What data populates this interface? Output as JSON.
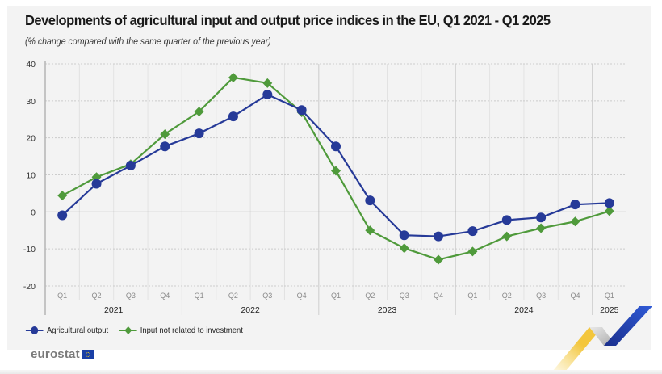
{
  "colors": {
    "output": "#263a98",
    "input": "#4f9a3b",
    "grid": "#d6d6d6",
    "zero_line": "#9a9a9a",
    "tick_text": "#333333",
    "quarter_text": "#8a8a8a"
  },
  "footer": {
    "logo_text": "eurostat"
  },
  "chart_data": {
    "type": "line",
    "title": "Developments of agricultural input and output price indices in the EU, Q1 2021 - Q1 2025",
    "subtitle": "(% change compared with the same quarter of the previous year)",
    "xlabel": "",
    "ylabel": "",
    "ylim": [
      -20,
      40
    ],
    "yticks": [
      40,
      30,
      20,
      10,
      0,
      -10,
      -20
    ],
    "ytick_labels": [
      "40",
      "30",
      "20",
      "10",
      "0",
      "-10",
      "-20"
    ],
    "grid": true,
    "legend_position": "bottom-left",
    "x": [
      "Q1",
      "Q2",
      "Q3",
      "Q4",
      "Q1",
      "Q2",
      "Q3",
      "Q4",
      "Q1",
      "Q2",
      "Q3",
      "Q4",
      "Q1",
      "Q2",
      "Q3",
      "Q4",
      "Q1"
    ],
    "year_groups": [
      {
        "label": "2021",
        "count": 4
      },
      {
        "label": "2022",
        "count": 4
      },
      {
        "label": "2023",
        "count": 4
      },
      {
        "label": "2024",
        "count": 4
      },
      {
        "label": "2025",
        "count": 1
      }
    ],
    "series": [
      {
        "name": "Agricultural output",
        "marker": "circle",
        "values": [
          -0.9,
          7.6,
          12.5,
          17.7,
          21.2,
          25.8,
          31.7,
          27.5,
          17.7,
          3.1,
          -6.3,
          -6.6,
          -5.2,
          -2.2,
          -1.5,
          2.0,
          2.4
        ]
      },
      {
        "name": "Input not related to investment",
        "marker": "diamond",
        "values": [
          4.4,
          9.4,
          12.9,
          21.0,
          27.1,
          36.3,
          34.8,
          26.9,
          11.1,
          -5.0,
          -9.8,
          -12.9,
          -10.7,
          -6.6,
          -4.4,
          -2.6,
          0.2
        ]
      }
    ]
  }
}
